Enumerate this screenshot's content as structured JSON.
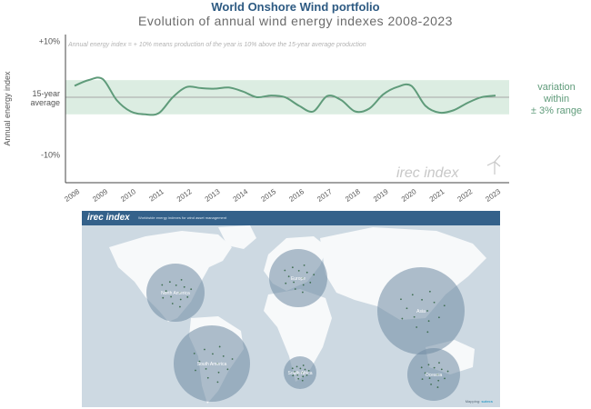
{
  "title": "World Onshore Wind portfolio",
  "subtitle": "Evolution of annual wind energy indexes 2008-2023",
  "chart_data": {
    "type": "line",
    "note": "Annual energy index = + 10% means production of the year is 10% above the 15-year average production",
    "ylabel": "Annual energy index",
    "y_ticks": [
      {
        "value": 10,
        "label": "+10%"
      },
      {
        "value": 0,
        "label": "15-year\naverage"
      },
      {
        "value": -10,
        "label": "-10%"
      }
    ],
    "ylim": [
      -15,
      11
    ],
    "x_labels": [
      "2008",
      "2009",
      "2010",
      "2011",
      "2012",
      "2013",
      "2014",
      "2015",
      "2016",
      "2017",
      "2018",
      "2019",
      "2020",
      "2021",
      "2022",
      "2023"
    ],
    "band": {
      "low": -3,
      "high": 3,
      "label_lines": [
        "variation",
        "within",
        "± 3% range"
      ]
    },
    "series": [
      {
        "x": [
          2008.0,
          2008.5,
          2009.0,
          2009.5,
          2010.0,
          2010.5,
          2011.0,
          2011.5,
          2012.0,
          2012.5,
          2013.0,
          2013.5,
          2014.0,
          2014.5,
          2015.0,
          2015.5,
          2016.0,
          2016.5,
          2017.0,
          2017.5,
          2018.0,
          2018.5,
          2019.0,
          2019.5,
          2020.0,
          2020.5,
          2021.0,
          2021.5,
          2022.0,
          2022.5,
          2023.0
        ],
        "y": [
          2,
          3,
          3.2,
          -0.5,
          -2.5,
          -3,
          -2.8,
          0,
          1.8,
          1.6,
          1.5,
          1.7,
          1,
          0,
          0.3,
          0,
          -1.5,
          -2.5,
          0.2,
          -0.5,
          -2.5,
          -2,
          0.5,
          1.8,
          2,
          -1.5,
          -2.7,
          -2.3,
          -1,
          0,
          0.3
        ]
      }
    ],
    "watermark": "irec index",
    "colors": {
      "line": "#5f9b7a",
      "band": "#dcede2",
      "band_text": "#5f9b7a",
      "avg_line": "#a6a6a6"
    }
  },
  "map": {
    "logo": "irec index",
    "tagline": "Worldwide energy indexes for wind asset management",
    "footer_prefix": "Mapping:",
    "footer_brand": "sutecs",
    "regions": [
      {
        "name": "North America"
      },
      {
        "name": "Europe"
      },
      {
        "name": "Asia"
      },
      {
        "name": "South America"
      },
      {
        "name": "South Africa"
      },
      {
        "name": "Oceania"
      }
    ]
  }
}
